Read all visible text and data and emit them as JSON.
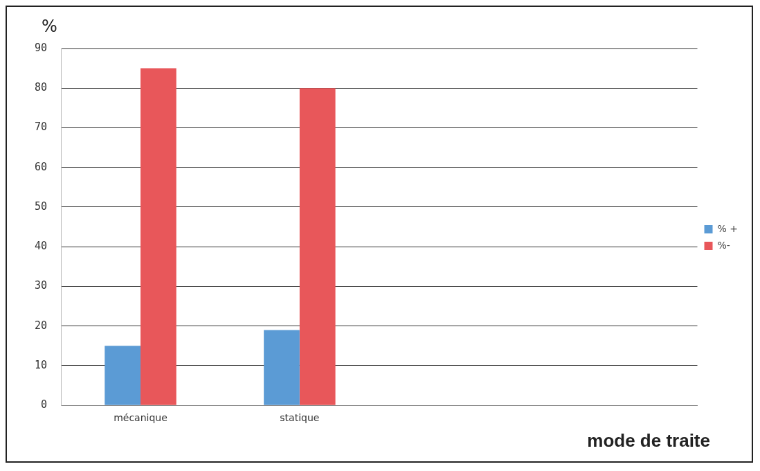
{
  "chart_data": {
    "type": "bar",
    "categories": [
      "mécanique",
      "statique",
      null,
      null
    ],
    "series": [
      {
        "name": "% +",
        "color": "#5b9bd5",
        "values": [
          15,
          19,
          null,
          null
        ]
      },
      {
        "name": "%-",
        "color": "#e8575a",
        "values": [
          85,
          80,
          null,
          null
        ]
      }
    ],
    "ylabel": "%",
    "xlabel": "mode de traite",
    "ylim": [
      0,
      90
    ],
    "yticks": [
      0,
      10,
      20,
      30,
      40,
      50,
      60,
      70,
      80,
      90
    ],
    "grid": "y",
    "legend": "right"
  }
}
